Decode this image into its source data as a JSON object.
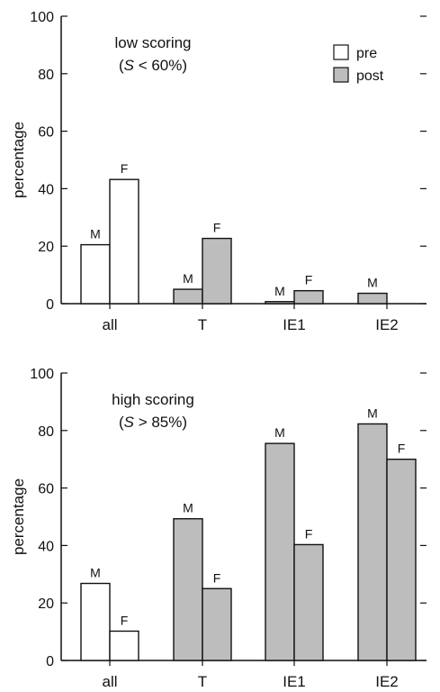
{
  "chart_data": [
    {
      "type": "bar",
      "ylabel": "percentage",
      "ylim": [
        0,
        100
      ],
      "yticks": [
        "0",
        "20",
        "40",
        "60",
        "80",
        "100"
      ],
      "categories": [
        "all",
        "T",
        "IE1",
        "IE2"
      ],
      "annotation": {
        "line1": "low scoring",
        "line2_var": "S",
        "line2_rest": " < 60%)"
      },
      "legend": [
        {
          "label": "pre",
          "color": "#ffffff"
        },
        {
          "label": "post",
          "color": "#bdbdbd"
        }
      ],
      "bars": [
        {
          "category": "all",
          "label": "M",
          "value": 20.5,
          "series": "pre"
        },
        {
          "category": "all",
          "label": "F",
          "value": 43.2,
          "series": "pre"
        },
        {
          "category": "T",
          "label": "M",
          "value": 5.0,
          "series": "post"
        },
        {
          "category": "T",
          "label": "F",
          "value": 22.7,
          "series": "post"
        },
        {
          "category": "IE1",
          "label": "M",
          "value": 0.7,
          "series": "post"
        },
        {
          "category": "IE1",
          "label": "F",
          "value": 4.5,
          "series": "post"
        },
        {
          "category": "IE2",
          "label": "M",
          "value": 3.6,
          "series": "post"
        }
      ]
    },
    {
      "type": "bar",
      "ylabel": "percentage",
      "ylim": [
        0,
        100
      ],
      "yticks": [
        "0",
        "20",
        "40",
        "60",
        "80",
        "100"
      ],
      "categories": [
        "all",
        "T",
        "IE1",
        "IE2"
      ],
      "annotation": {
        "line1": "high scoring",
        "line2_var": "S",
        "line2_rest": " > 85%)"
      },
      "bars": [
        {
          "category": "all",
          "label": "M",
          "value": 26.8,
          "series": "pre"
        },
        {
          "category": "all",
          "label": "F",
          "value": 10.2,
          "series": "pre"
        },
        {
          "category": "T",
          "label": "M",
          "value": 49.3,
          "series": "post"
        },
        {
          "category": "T",
          "label": "F",
          "value": 25.0,
          "series": "post"
        },
        {
          "category": "IE1",
          "label": "M",
          "value": 75.5,
          "series": "post"
        },
        {
          "category": "IE1",
          "label": "F",
          "value": 40.3,
          "series": "post"
        },
        {
          "category": "IE2",
          "label": "M",
          "value": 82.3,
          "series": "post"
        },
        {
          "category": "IE2",
          "label": "F",
          "value": 70.0,
          "series": "post"
        }
      ]
    }
  ],
  "colors": {
    "pre": "#ffffff",
    "post": "#bdbdbd",
    "stroke": "#111111"
  }
}
